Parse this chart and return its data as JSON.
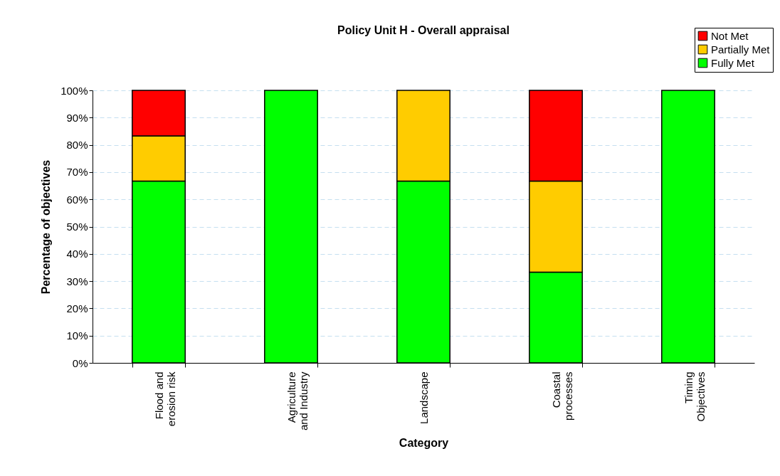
{
  "chart_data": {
    "type": "bar",
    "title": "Policy Unit H - Overall appraisal",
    "xlabel": "Category",
    "ylabel": "Percentage of objectives",
    "categories": [
      "Flood and erosion risk",
      "Agriculture and Industry",
      "Landscape",
      "Coastal processes",
      "Timing Objectives"
    ],
    "stacked": true,
    "series": [
      {
        "name": "Fully Met",
        "color": "#00ff00",
        "values": [
          66.7,
          100,
          66.7,
          33.3,
          100
        ]
      },
      {
        "name": "Partially Met",
        "color": "#ffcc00",
        "values": [
          16.6,
          null,
          33.3,
          33.4,
          null
        ]
      },
      {
        "name": "Not Met",
        "color": "#ff0000",
        "values": [
          16.7,
          null,
          null,
          33.3,
          null
        ]
      }
    ],
    "ylim": [
      0,
      100
    ],
    "yticks": [
      {
        "value": 0,
        "label": "0%"
      },
      {
        "value": 10,
        "label": "10%"
      },
      {
        "value": 20,
        "label": "20%"
      },
      {
        "value": 30,
        "label": "30%"
      },
      {
        "value": 40,
        "label": "40%"
      },
      {
        "value": 50,
        "label": "50%"
      },
      {
        "value": 60,
        "label": "60%"
      },
      {
        "value": 70,
        "label": "70%"
      },
      {
        "value": 80,
        "label": "80%"
      },
      {
        "value": 90,
        "label": "90%"
      },
      {
        "value": 100,
        "label": "100%"
      }
    ],
    "grid": "y",
    "legend": "top right"
  }
}
